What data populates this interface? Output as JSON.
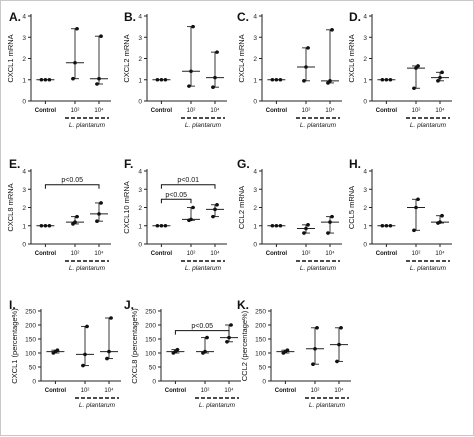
{
  "figure": {
    "group_label": "L. plantarum",
    "x_categories": [
      "Control",
      "10²",
      "10⁴"
    ]
  },
  "chart_data": [
    {
      "panel": "A.",
      "type": "scatter",
      "ylabel": "CXCL1 mRNA",
      "ylim": [
        0,
        4
      ],
      "yticks": [
        0,
        1,
        2,
        3,
        4
      ],
      "categories": [
        "Control",
        "10²",
        "10⁴"
      ],
      "points": [
        [
          1,
          1,
          1
        ],
        [
          1.05,
          1.8,
          3.4
        ],
        [
          0.8,
          1.05,
          3.05
        ]
      ],
      "median": [
        1,
        1.8,
        1.05
      ],
      "range": [
        [
          1,
          1
        ],
        [
          1.05,
          3.4
        ],
        [
          0.8,
          3.05
        ]
      ],
      "annotations": []
    },
    {
      "panel": "B.",
      "type": "scatter",
      "ylabel": "CXCL2 mRNA",
      "ylim": [
        0,
        4
      ],
      "yticks": [
        0,
        1,
        2,
        3,
        4
      ],
      "categories": [
        "Control",
        "10²",
        "10⁴"
      ],
      "points": [
        [
          1,
          1,
          1
        ],
        [
          0.7,
          1.4,
          3.5
        ],
        [
          0.65,
          1.1,
          2.3
        ]
      ],
      "median": [
        1,
        1.4,
        1.1
      ],
      "range": [
        [
          1,
          1
        ],
        [
          0.7,
          3.5
        ],
        [
          0.65,
          2.3
        ]
      ],
      "annotations": []
    },
    {
      "panel": "C.",
      "type": "scatter",
      "ylabel": "CXCL4 mRNA",
      "ylim": [
        0,
        4
      ],
      "yticks": [
        0,
        1,
        2,
        3,
        4
      ],
      "categories": [
        "Control",
        "10²",
        "10⁴"
      ],
      "points": [
        [
          1,
          1,
          1
        ],
        [
          0.95,
          1.6,
          2.5
        ],
        [
          0.85,
          0.95,
          3.35
        ]
      ],
      "median": [
        1,
        1.6,
        0.95
      ],
      "range": [
        [
          1,
          1
        ],
        [
          0.95,
          2.5
        ],
        [
          0.85,
          3.35
        ]
      ],
      "annotations": []
    },
    {
      "panel": "D.",
      "type": "scatter",
      "ylabel": "CXCL6 mRNA",
      "ylim": [
        0,
        4
      ],
      "yticks": [
        0,
        1,
        2,
        3,
        4
      ],
      "categories": [
        "Control",
        "10²",
        "10⁴"
      ],
      "points": [
        [
          1,
          1,
          1
        ],
        [
          0.6,
          1.55,
          1.65
        ],
        [
          0.95,
          1.1,
          1.35
        ]
      ],
      "median": [
        1,
        1.55,
        1.1
      ],
      "range": [
        [
          1,
          1
        ],
        [
          0.6,
          1.65
        ],
        [
          0.95,
          1.35
        ]
      ],
      "annotations": []
    },
    {
      "panel": "E.",
      "type": "scatter",
      "ylabel": "CXCL8 mRNA",
      "ylim": [
        0,
        4
      ],
      "yticks": [
        0,
        1,
        2,
        3,
        4
      ],
      "categories": [
        "Control",
        "10²",
        "10⁴"
      ],
      "points": [
        [
          1,
          1,
          1
        ],
        [
          1.1,
          1.2,
          1.5
        ],
        [
          1.25,
          1.65,
          2.25
        ]
      ],
      "median": [
        1,
        1.2,
        1.65
      ],
      "range": [
        [
          1,
          1
        ],
        [
          1.1,
          1.5
        ],
        [
          1.25,
          2.25
        ]
      ],
      "annotations": [
        {
          "text": "p<0.05",
          "from": 0,
          "to": 2,
          "y": 3.25
        }
      ]
    },
    {
      "panel": "F.",
      "type": "scatter",
      "ylabel": "CXCL10 mRNA",
      "ylim": [
        0,
        4
      ],
      "yticks": [
        0,
        1,
        2,
        3,
        4
      ],
      "categories": [
        "Control",
        "10²",
        "10⁴"
      ],
      "points": [
        [
          1,
          1,
          1
        ],
        [
          1.3,
          1.35,
          2.0
        ],
        [
          1.5,
          1.9,
          2.15
        ]
      ],
      "median": [
        1,
        1.35,
        1.9
      ],
      "range": [
        [
          1,
          1
        ],
        [
          1.3,
          2.0
        ],
        [
          1.5,
          2.15
        ]
      ],
      "annotations": [
        {
          "text": "p<0.01",
          "from": 0,
          "to": 2,
          "y": 3.25
        },
        {
          "text": "p<0.05",
          "from": 0,
          "to": 1,
          "y": 2.45
        }
      ]
    },
    {
      "panel": "G.",
      "type": "scatter",
      "ylabel": "CCL2 mRNA",
      "ylim": [
        0,
        4
      ],
      "yticks": [
        0,
        1,
        2,
        3,
        4
      ],
      "categories": [
        "Control",
        "10²",
        "10⁴"
      ],
      "points": [
        [
          1,
          1,
          1
        ],
        [
          0.6,
          0.85,
          1.05
        ],
        [
          0.6,
          1.2,
          1.5
        ]
      ],
      "median": [
        1,
        0.85,
        1.2
      ],
      "range": [
        [
          1,
          1
        ],
        [
          0.6,
          1.05
        ],
        [
          0.6,
          1.5
        ]
      ],
      "annotations": []
    },
    {
      "panel": "H.",
      "type": "scatter",
      "ylabel": "CCL5 mRNA",
      "ylim": [
        0,
        4
      ],
      "yticks": [
        0,
        1,
        2,
        3,
        4
      ],
      "categories": [
        "Control",
        "10²",
        "10⁴"
      ],
      "points": [
        [
          1,
          1,
          1
        ],
        [
          0.75,
          2.0,
          2.45
        ],
        [
          1.15,
          1.2,
          1.55
        ]
      ],
      "median": [
        1,
        2.0,
        1.2
      ],
      "range": [
        [
          1,
          1
        ],
        [
          0.75,
          2.45
        ],
        [
          1.15,
          1.55
        ]
      ],
      "annotations": []
    },
    {
      "panel": "I.",
      "type": "scatter",
      "ylabel": "CXCL1 (percentage%)",
      "ylim": [
        0,
        250
      ],
      "yticks": [
        0,
        50,
        100,
        150,
        200,
        250
      ],
      "categories": [
        "Control",
        "10²",
        "10⁴"
      ],
      "points": [
        [
          100,
          105,
          110
        ],
        [
          55,
          95,
          195
        ],
        [
          80,
          105,
          225
        ]
      ],
      "median": [
        105,
        95,
        105
      ],
      "range": [
        [
          100,
          110
        ],
        [
          55,
          195
        ],
        [
          80,
          225
        ]
      ],
      "annotations": []
    },
    {
      "panel": "J.",
      "type": "scatter",
      "ylabel": "CXCL8 (percentage%)",
      "ylim": [
        0,
        250
      ],
      "yticks": [
        0,
        50,
        100,
        150,
        200,
        250
      ],
      "categories": [
        "Control",
        "10²",
        "10⁴"
      ],
      "points": [
        [
          100,
          105,
          112
        ],
        [
          100,
          105,
          155
        ],
        [
          140,
          155,
          200
        ]
      ],
      "median": [
        105,
        105,
        155
      ],
      "range": [
        [
          100,
          112
        ],
        [
          100,
          155
        ],
        [
          140,
          200
        ]
      ],
      "annotations": [
        {
          "text": "p<0.05",
          "from": 0,
          "to": 2,
          "y": 180
        }
      ]
    },
    {
      "panel": "K.",
      "type": "scatter",
      "ylabel": "CCL2 (percentage%)",
      "ylim": [
        0,
        250
      ],
      "yticks": [
        0,
        50,
        100,
        150,
        200,
        250
      ],
      "categories": [
        "Control",
        "10²",
        "10⁴"
      ],
      "points": [
        [
          100,
          105,
          110
        ],
        [
          60,
          115,
          190
        ],
        [
          70,
          130,
          190
        ]
      ],
      "median": [
        105,
        115,
        130
      ],
      "range": [
        [
          100,
          110
        ],
        [
          60,
          190
        ],
        [
          70,
          190
        ]
      ],
      "annotations": []
    }
  ]
}
